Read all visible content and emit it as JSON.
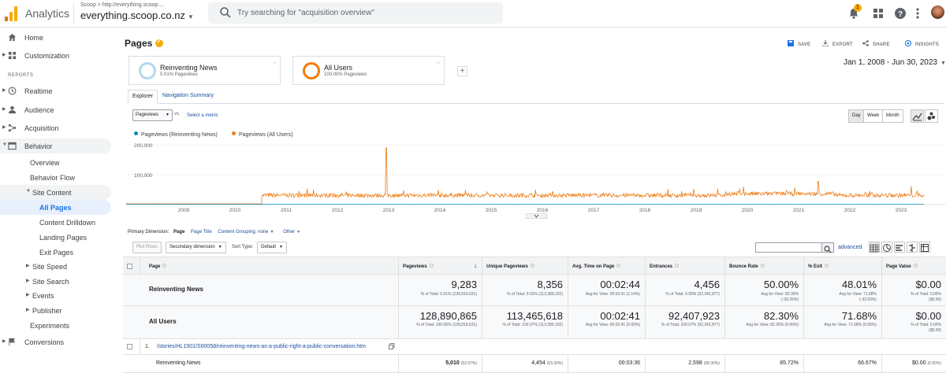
{
  "header": {
    "app_title": "Analytics",
    "account_crumb": "Scoop > http://everything.scoop....",
    "account_name": "everything.scoop.co.nz",
    "search_placeholder": "Try searching for \"acquisition overview\"",
    "notification_count": "1"
  },
  "sidebar": {
    "reports_heading": "REPORTS",
    "items": [
      {
        "label": "Home"
      },
      {
        "label": "Customization"
      },
      {
        "label": "Realtime"
      },
      {
        "label": "Audience"
      },
      {
        "label": "Acquisition"
      },
      {
        "label": "Behavior"
      },
      {
        "label": "Overview"
      },
      {
        "label": "Behavior Flow"
      },
      {
        "label": "Site Content"
      },
      {
        "label": "All Pages"
      },
      {
        "label": "Content Drilldown"
      },
      {
        "label": "Landing Pages"
      },
      {
        "label": "Exit Pages"
      },
      {
        "label": "Site Speed"
      },
      {
        "label": "Site Search"
      },
      {
        "label": "Events"
      },
      {
        "label": "Publisher"
      },
      {
        "label": "Experiments"
      },
      {
        "label": "Conversions"
      }
    ]
  },
  "main": {
    "title": "Pages",
    "actions": {
      "save": "SAVE",
      "export": "EXPORT",
      "share": "SHARE",
      "insights": "INSIGHTS"
    },
    "segments": [
      {
        "name": "Reinventing News",
        "sub": "0.01% Pageviews",
        "color": "#b3d9ee"
      },
      {
        "name": "All Users",
        "sub": "100.00% Pageviews",
        "color": "#f57c00"
      }
    ],
    "date_range": "Jan 1, 2008 - Jun 30, 2023",
    "tabs": [
      "Explorer",
      "Navigation Summary"
    ],
    "metric_select": "Pageviews",
    "vs": "vs.",
    "select_metric": "Select a metric",
    "granularity": [
      "Day",
      "Week",
      "Month"
    ]
  },
  "chart_data": {
    "type": "line",
    "series": [
      {
        "name": "Pageviews (Reinventing News)",
        "color": "#058dc7"
      },
      {
        "name": "Pageviews (All Users)",
        "color": "#ed7e17"
      }
    ],
    "ylim": [
      0,
      200000
    ],
    "yticks": [
      "200,000",
      "100,000"
    ],
    "xticks": [
      "2009",
      "2010",
      "2011",
      "2012",
      "2013",
      "2014",
      "2015",
      "2016",
      "2017",
      "2018",
      "2019",
      "2020",
      "2021",
      "2022",
      "2023"
    ]
  },
  "table_controls": {
    "primary_dimension_label": "Primary Dimension:",
    "dimensions": [
      "Page",
      "Page Title",
      "Content Grouping: none",
      "Other"
    ],
    "plot_rows": "Plot Rows",
    "secondary_dimension": "Secondary dimension",
    "sort_type_label": "Sort Type:",
    "sort_type": "Default",
    "advanced": "advanced"
  },
  "table": {
    "columns": [
      "Page",
      "Pageviews",
      "Unique Pageviews",
      "Avg. Time on Page",
      "Entrances",
      "Bounce Rate",
      "% Exit",
      "Page Value"
    ],
    "summary_rows": [
      {
        "label": "Reinventing News",
        "values": [
          "9,283",
          "8,356",
          "00:02:44",
          "4,456",
          "50.00%",
          "48.01%",
          "$0.00"
        ],
        "subs": [
          "% of Total: 0.01% (128,819,631)",
          "% of Total: 0.01% (113,389,192)",
          "Avg for View: 00:02:41 (2.14%)",
          "% of Total: 0.00% (92,342,877)",
          "Avg for View: 82.30% (-39.25%)",
          "Avg for View: 71.68% (-33.03%)",
          "% of Total: 0.00% ($0.00)"
        ]
      },
      {
        "label": "All Users",
        "values": [
          "128,890,865",
          "113,465,618",
          "00:02:41",
          "92,407,923",
          "82.30%",
          "71.68%",
          "$0.00"
        ],
        "subs": [
          "% of Total: 100.06% (128,819,631)",
          "% of Total: 100.07% (113,389,192)",
          "Avg for View: 00:02:41 (0.00%)",
          "% of Total: 100.07% (92,342,877)",
          "Avg for View: 82.30% (0.00%)",
          "Avg for View: 71.68% (0.00%)",
          "% of Total: 0.00% ($0.00)"
        ]
      }
    ],
    "rows": [
      {
        "index": "1.",
        "page": "/stories/HL1501/S00058/reinventing-news-as-a-public-right-a-public-conversation.htm",
        "segment": "Reinventing News",
        "values": [
          "5,010",
          "4,454",
          "00:03:36",
          "2,598",
          "85.72%",
          "66.67%",
          "$0.00"
        ],
        "pcts": [
          "(53.97%)",
          "(53.30%)",
          "",
          "(58.30%)",
          "",
          "",
          "(0.00%)"
        ]
      }
    ]
  }
}
